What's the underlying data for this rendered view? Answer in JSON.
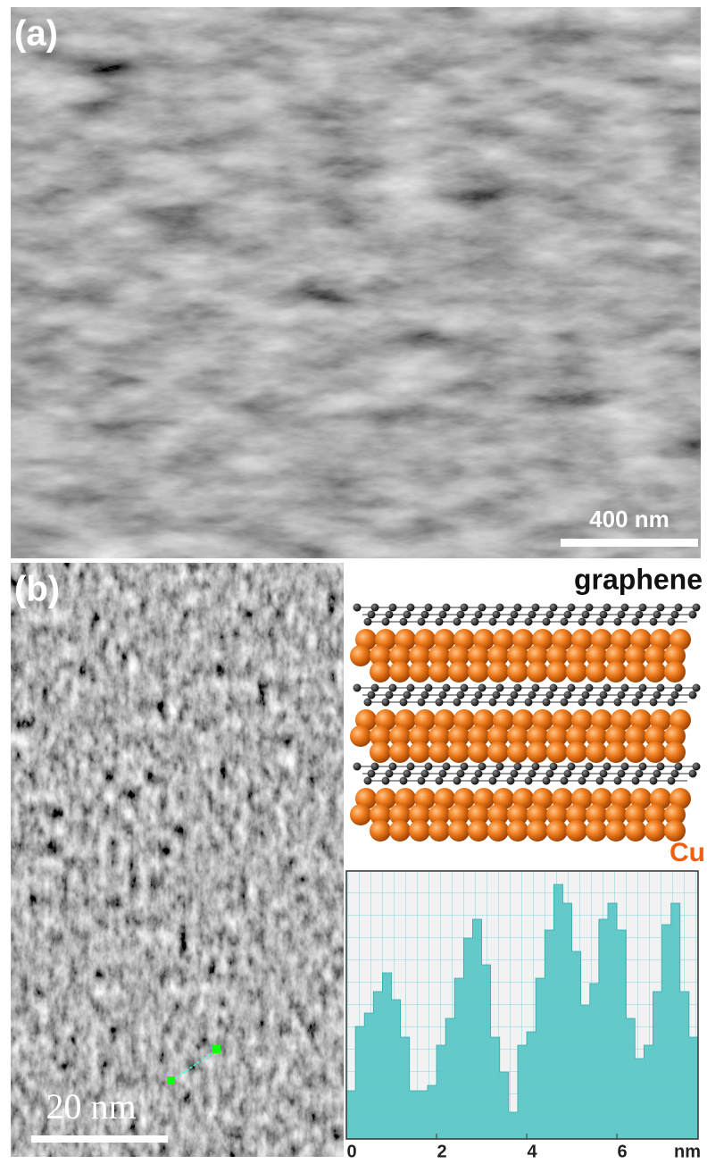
{
  "panels": [
    {
      "label": "(a)",
      "scale_bar": "400 nm"
    },
    {
      "label": "(b)",
      "scale_bar": "20 nm"
    }
  ],
  "schematic": {
    "top_label": "graphene",
    "bottom_label": "Cu"
  },
  "chart_data": {
    "type": "step",
    "x": [
      0.0,
      0.2,
      0.4,
      0.6,
      0.8,
      1.0,
      1.2,
      1.4,
      1.6,
      1.8,
      2.0,
      2.2,
      2.4,
      2.6,
      2.8,
      3.0,
      3.2,
      3.4,
      3.6,
      3.8,
      4.0,
      4.2,
      4.4,
      4.6,
      4.8,
      5.0,
      5.2,
      5.4,
      5.6,
      5.8,
      6.0,
      6.2,
      6.4,
      6.6,
      6.8,
      7.0,
      7.2,
      7.4,
      7.6
    ],
    "values": [
      18,
      42,
      47,
      55,
      62,
      52,
      38,
      18,
      18,
      20,
      35,
      45,
      60,
      75,
      82,
      65,
      38,
      25,
      10,
      35,
      40,
      60,
      78,
      95,
      88,
      70,
      50,
      58,
      82,
      88,
      78,
      45,
      30,
      35,
      55,
      80,
      88,
      55,
      38
    ],
    "color": "#5cc6c6",
    "x_label": "nm",
    "xlim": [
      0,
      7.8
    ],
    "xticks": [
      0,
      2,
      4,
      6
    ],
    "ylim": [
      0,
      100
    ],
    "grid": true
  }
}
